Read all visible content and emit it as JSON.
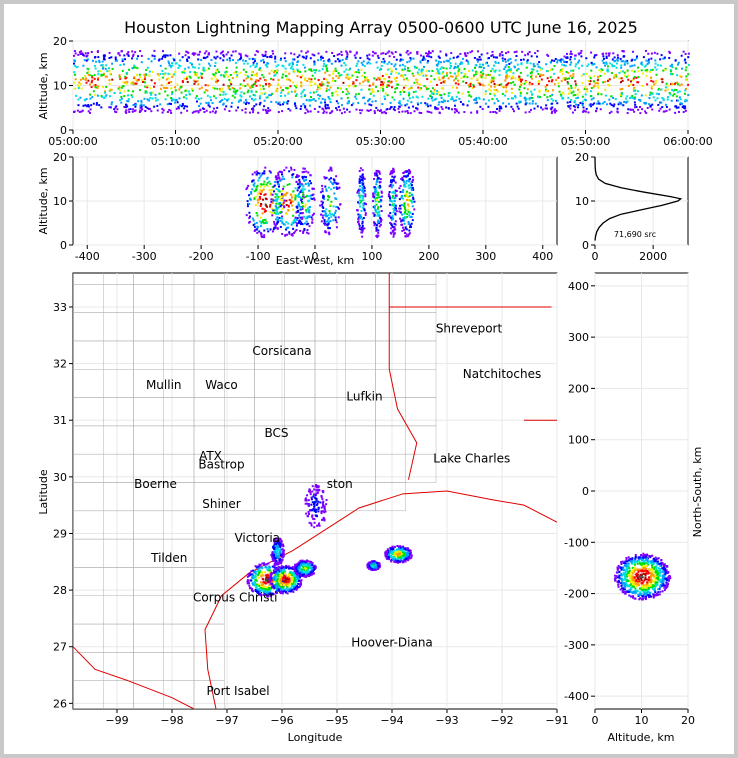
{
  "chart_data": {
    "type": "heatmap",
    "title": "Houston Lightning Mapping Array 0500-0600 UTC June 16, 2025",
    "colors": {
      "density": [
        "#7d00ff",
        "#0000ff",
        "#00a0ff",
        "#00e0e0",
        "#00e000",
        "#f0f000",
        "#ff9900",
        "#ff0000",
        "#b00000",
        "#404040",
        "#ffffff"
      ],
      "map_states": "#b0b0b0",
      "map_borders": "#e00000",
      "grid": "#e8e8e8"
    },
    "panels": {
      "time_height": {
        "ylabel": "Altitude, km",
        "xlim": [
          "05:00:00",
          "06:00:00"
        ],
        "xticks": [
          "05:00:00",
          "05:10:00",
          "05:20:00",
          "05:30:00",
          "05:40:00",
          "05:50:00",
          "06:00:00"
        ],
        "ylim": [
          0,
          20
        ],
        "yticks": [
          0,
          10,
          20
        ],
        "density_core_altitude_km": [
          8,
          14
        ]
      },
      "ew_height": {
        "xlabel": "East-West, km",
        "ylabel": "Altitude, km",
        "xlim": [
          -425,
          425
        ],
        "xticks": [
          -400,
          -300,
          -200,
          -100,
          0,
          100,
          200,
          300,
          400
        ],
        "ylim": [
          0,
          20
        ],
        "yticks": [
          0,
          10,
          20
        ],
        "clusters_km": [
          {
            "x": -90,
            "width": 35,
            "intensity": 1.0
          },
          {
            "x": -50,
            "width": 30,
            "intensity": 0.9
          },
          {
            "x": -20,
            "width": 18,
            "intensity": 0.6
          },
          {
            "x": 25,
            "width": 18,
            "intensity": 0.55
          },
          {
            "x": 80,
            "width": 8,
            "intensity": 0.5
          },
          {
            "x": 108,
            "width": 8,
            "intensity": 0.6
          },
          {
            "x": 135,
            "width": 8,
            "intensity": 0.5
          },
          {
            "x": 160,
            "width": 15,
            "intensity": 0.7
          }
        ]
      },
      "histogram": {
        "annotation": "71,690 src",
        "xlim": [
          0,
          3200
        ],
        "xticks": [
          0,
          2000
        ],
        "ylim": [
          0,
          20
        ],
        "yticks": [
          0,
          10,
          20
        ],
        "altitude_km": [
          1,
          2,
          3,
          4,
          5,
          6,
          7,
          8,
          9,
          10,
          10.5,
          11,
          12,
          13,
          14,
          15,
          16,
          17,
          18,
          19,
          20
        ],
        "count": [
          0,
          20,
          60,
          140,
          280,
          500,
          900,
          1600,
          2300,
          2850,
          2950,
          2600,
          1700,
          900,
          350,
          120,
          40,
          15,
          5,
          2,
          0
        ]
      },
      "map": {
        "xlabel": "Longitude",
        "ylabel": "Latitude",
        "xlim": [
          -99.8,
          -91.0
        ],
        "ylim": [
          25.9,
          33.6
        ],
        "xticks": [
          -99,
          -98,
          -97,
          -96,
          -95,
          -94,
          -93,
          -92,
          -91
        ],
        "yticks": [
          26,
          27,
          28,
          29,
          30,
          31,
          32,
          33
        ],
        "cities": [
          {
            "name": "Shreveport",
            "lon": -92.6,
            "lat": 32.55,
            "color": "#000000"
          },
          {
            "name": "Corsicana",
            "lon": -96.0,
            "lat": 32.15,
            "color": "#000000"
          },
          {
            "name": "Natchitoches",
            "lon": -92.0,
            "lat": 31.75,
            "color": "#000000"
          },
          {
            "name": "Mullin",
            "lon": -98.15,
            "lat": 31.55,
            "color": "#ff8c40"
          },
          {
            "name": "Waco",
            "lon": -97.1,
            "lat": 31.55,
            "color": "#000000"
          },
          {
            "name": "Lufkin",
            "lon": -94.5,
            "lat": 31.35,
            "color": "#000000"
          },
          {
            "name": "BCS",
            "lon": -96.1,
            "lat": 30.7,
            "color": "#400000",
            "size": 15
          },
          {
            "name": "Bastrop",
            "lon": -97.1,
            "lat": 30.15,
            "color": "#000000"
          },
          {
            "name": "ATX",
            "lon": -97.3,
            "lat": 30.3,
            "color": "#ff8c40"
          },
          {
            "name": "Lake Charles",
            "lon": -92.55,
            "lat": 30.25,
            "color": "#000000"
          },
          {
            "name": "Boerne",
            "lon": -98.3,
            "lat": 29.8,
            "color": "#000000"
          },
          {
            "name": "ston",
            "lon": -94.95,
            "lat": 29.8,
            "color": "#e0a000",
            "size": 14
          },
          {
            "name": "Shiner",
            "lon": -97.1,
            "lat": 29.45,
            "color": "#000000"
          },
          {
            "name": "Victoria",
            "lon": -96.45,
            "lat": 28.85,
            "color": "#000000"
          },
          {
            "name": "Tilden",
            "lon": -98.05,
            "lat": 28.5,
            "color": "#000000"
          },
          {
            "name": "Corpus Christi",
            "lon": -96.85,
            "lat": 27.8,
            "color": "#000000"
          },
          {
            "name": "Hoover-Diana",
            "lon": -94.0,
            "lat": 27.0,
            "color": "#0000ff"
          },
          {
            "name": "Port Isabel",
            "lon": -96.8,
            "lat": 26.15,
            "color": "#000000"
          }
        ],
        "clusters": [
          {
            "lon": -96.3,
            "lat": 28.2,
            "rx": 0.35,
            "ry": 0.3,
            "intensity": 1.0
          },
          {
            "lon": -95.95,
            "lat": 28.2,
            "rx": 0.3,
            "ry": 0.25,
            "intensity": 0.95
          },
          {
            "lon": -95.6,
            "lat": 28.4,
            "rx": 0.2,
            "ry": 0.15,
            "intensity": 0.6
          },
          {
            "lon": -96.1,
            "lat": 28.7,
            "rx": 0.12,
            "ry": 0.25,
            "intensity": 0.4
          },
          {
            "lon": -94.35,
            "lat": 28.45,
            "rx": 0.12,
            "ry": 0.08,
            "intensity": 0.5
          },
          {
            "lon": -93.9,
            "lat": 28.65,
            "rx": 0.25,
            "ry": 0.15,
            "intensity": 0.75
          },
          {
            "lon": -95.4,
            "lat": 29.5,
            "rx": 0.2,
            "ry": 0.4,
            "intensity": 0.2
          }
        ]
      },
      "ns_altitude": {
        "xlabel": "Altitude, km",
        "ylabel": "North-South, km",
        "xlim": [
          0,
          20
        ],
        "xticks": [
          0,
          10,
          20
        ],
        "ylim": [
          -425,
          425
        ],
        "yticks": [
          -400,
          -300,
          -200,
          -100,
          0,
          100,
          200,
          300,
          400
        ],
        "clusters": [
          {
            "alt": 10,
            "ns": -165,
            "r_alt": 6,
            "r_ns": 45,
            "intensity": 1.0
          }
        ]
      }
    }
  }
}
